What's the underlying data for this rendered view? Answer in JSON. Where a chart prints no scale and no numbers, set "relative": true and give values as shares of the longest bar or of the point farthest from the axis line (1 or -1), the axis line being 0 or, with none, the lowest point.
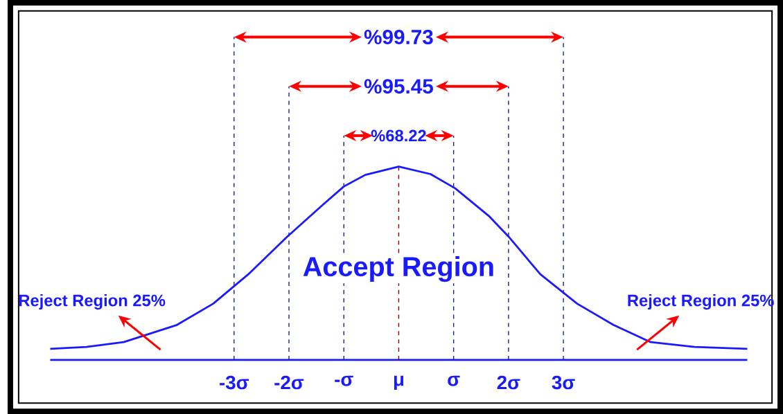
{
  "chart_data": {
    "type": "line",
    "relative": true,
    "x": [
      -6.35,
      -5.69,
      -5.01,
      -4.04,
      -3.38,
      -2.74,
      -2.04,
      -1.4,
      -1.0,
      -0.61,
      0,
      0.58,
      1.03,
      1.64,
      2.0,
      2.58,
      3.25,
      3.91,
      4.59,
      5.39,
      6.35
    ],
    "series": [
      {
        "color": "#1a1aff",
        "values": [
          0.057,
          0.067,
          0.092,
          0.181,
          0.291,
          0.443,
          0.635,
          0.798,
          0.897,
          0.957,
          1,
          0.961,
          0.887,
          0.745,
          0.638,
          0.443,
          0.291,
          0.181,
          0.092,
          0.067,
          0.057
        ]
      }
    ],
    "xlim": [
      -6.35,
      6.35
    ],
    "xticks": [
      {
        "value": -3,
        "label": "-3σ"
      },
      {
        "value": -2,
        "label": "-2σ"
      },
      {
        "value": -1,
        "label": "-σ"
      },
      {
        "value": 0,
        "label": "μ"
      },
      {
        "value": 1,
        "label": "σ"
      },
      {
        "value": 2,
        "label": "2σ"
      },
      {
        "value": 3,
        "label": "3σ"
      }
    ],
    "ref_lines": [
      {
        "axis": "x",
        "value": -3,
        "color": "#1a237e",
        "line_style": "dashed"
      },
      {
        "axis": "x",
        "value": -2,
        "color": "#1a237e",
        "line_style": "dashed"
      },
      {
        "axis": "x",
        "value": -1,
        "color": "#1a237e",
        "line_style": "dashed"
      },
      {
        "axis": "x",
        "value": 0,
        "color": "#8b0000",
        "line_style": "dashed"
      },
      {
        "axis": "x",
        "value": 1,
        "color": "#1a237e",
        "line_style": "dashed"
      },
      {
        "axis": "x",
        "value": 2,
        "color": "#1a237e",
        "line_style": "dashed"
      },
      {
        "axis": "x",
        "value": 3,
        "color": "#1a237e",
        "line_style": "dashed"
      }
    ],
    "annotations": [
      "%68.22",
      "%95.45",
      "%99.73",
      "Reject Region 25%",
      "Accept Region",
      "Reject Region 25%"
    ],
    "marker": "none",
    "line_style": "solid"
  }
}
